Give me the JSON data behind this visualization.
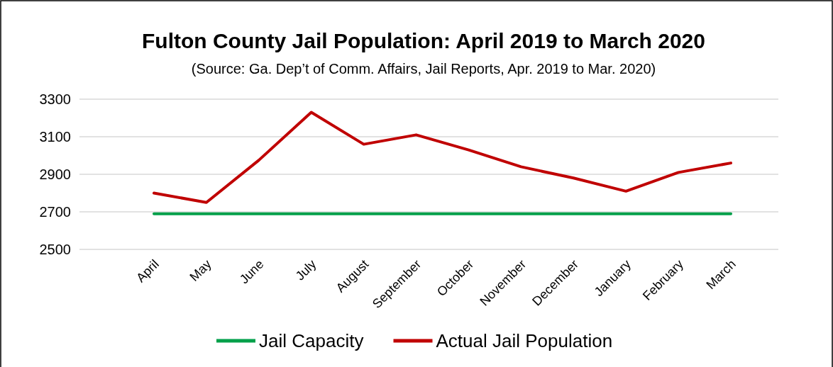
{
  "chart_data": {
    "type": "line",
    "title": "Fulton County Jail Population: April 2019 to March 2020",
    "subtitle": "(Source: Ga. Dep’t of Comm. Affairs, Jail Reports, Apr. 2019 to Mar. 2020)",
    "categories": [
      "April",
      "May",
      "June",
      "July",
      "August",
      "September",
      "October",
      "November",
      "December",
      "January",
      "February",
      "March"
    ],
    "series": [
      {
        "name": "Jail Capacity",
        "color": "#00a04a",
        "values": [
          2690,
          2690,
          2690,
          2690,
          2690,
          2690,
          2690,
          2690,
          2690,
          2690,
          2690,
          2690
        ]
      },
      {
        "name": "Actual Jail Population",
        "color": "#c00000",
        "values": [
          2800,
          2750,
          2975,
          3230,
          3060,
          3110,
          3030,
          2940,
          2880,
          2810,
          2910,
          2960
        ]
      }
    ],
    "ylim": [
      2500,
      3300
    ],
    "yticks": [
      2500,
      2700,
      2900,
      3100,
      3300
    ],
    "grid": "y",
    "legend": "bottom",
    "marker": "none",
    "line_style": "solid"
  }
}
